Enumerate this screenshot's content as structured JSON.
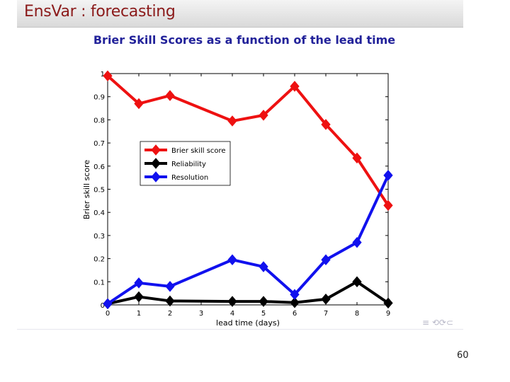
{
  "slide": {
    "title": "EnsVar : forecasting",
    "page_number": "60",
    "nav_symbols": "≡ ⟲⟳⊂"
  },
  "chart_data": {
    "type": "line",
    "title": "Brier Skill Scores as a function of the lead time",
    "xlabel": "lead time (days)",
    "ylabel": "Brier skill score",
    "xlim": [
      0,
      9
    ],
    "ylim": [
      0,
      1
    ],
    "xticks": [
      0,
      1,
      2,
      3,
      4,
      5,
      6,
      7,
      8,
      9
    ],
    "yticks": [
      0,
      0.1,
      0.2,
      0.3,
      0.4,
      0.5,
      0.6,
      0.7,
      0.8,
      0.9,
      1
    ],
    "ytick_labels": [
      "0",
      "0.1",
      "0.2",
      "0.3",
      "0.4",
      "0.5",
      "0.6",
      "0.7",
      "0.8",
      "0.9",
      "1"
    ],
    "legend_position": "top-left",
    "series": [
      {
        "name": "Brier skill score",
        "color": "#ee1111",
        "x": [
          0,
          1,
          2,
          4,
          5,
          6,
          7,
          8,
          9
        ],
        "values": [
          0.99,
          0.87,
          0.905,
          0.795,
          0.82,
          0.945,
          0.78,
          0.635,
          0.43
        ]
      },
      {
        "name": "Reliability",
        "color": "#000000",
        "x": [
          0,
          1,
          2,
          4,
          5,
          6,
          7,
          8,
          9
        ],
        "values": [
          0.005,
          0.035,
          0.017,
          0.015,
          0.015,
          0.01,
          0.025,
          0.1,
          0.008
        ]
      },
      {
        "name": "Resolution",
        "color": "#1111ee",
        "x": [
          0,
          1,
          2,
          4,
          5,
          6,
          7,
          8,
          9
        ],
        "values": [
          0.005,
          0.095,
          0.08,
          0.195,
          0.165,
          0.045,
          0.195,
          0.27,
          0.56
        ]
      }
    ]
  }
}
